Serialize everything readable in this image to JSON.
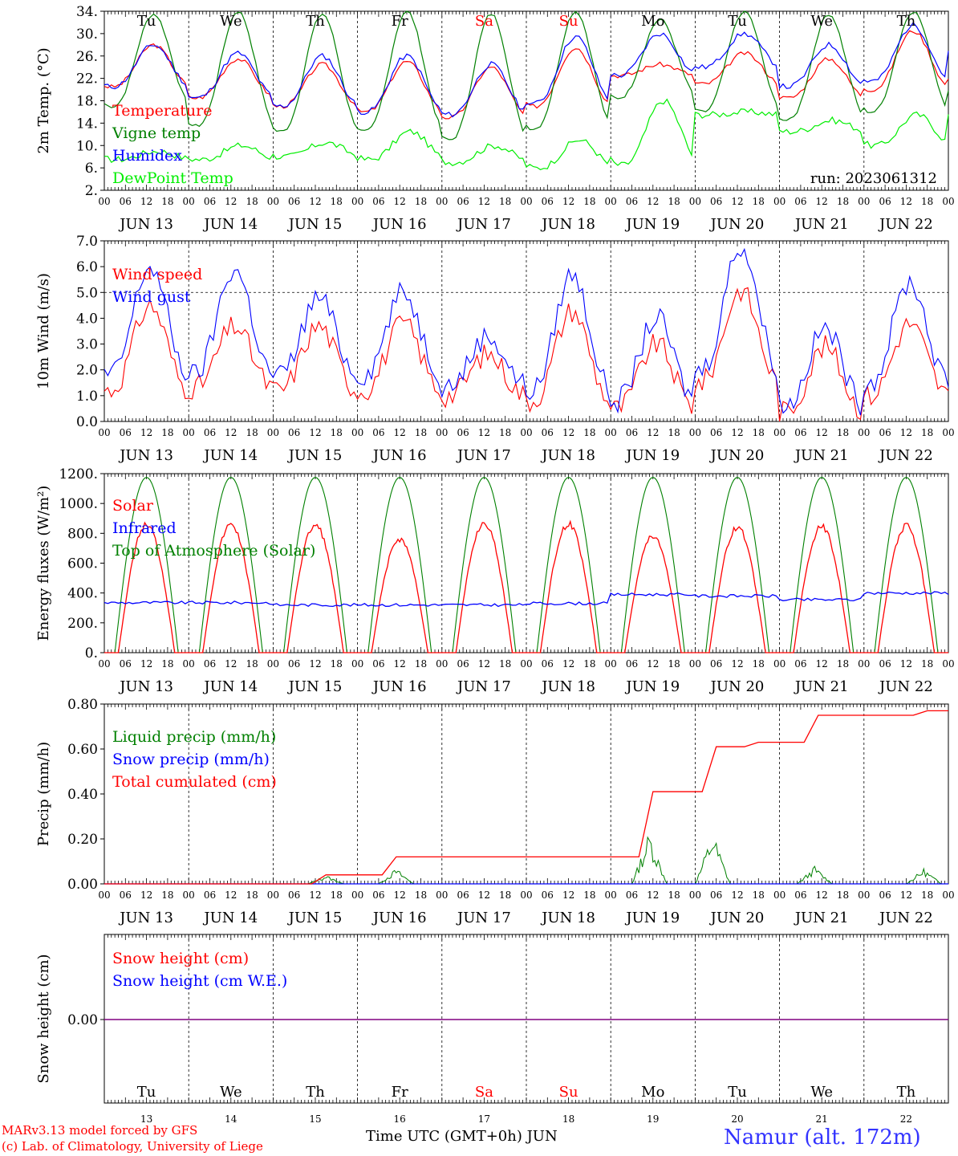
{
  "days": [
    "JUN 13",
    "JUN 14",
    "JUN 15",
    "JUN 16",
    "JUN 17",
    "JUN 18",
    "JUN 19",
    "JUN 20",
    "JUN 21",
    "JUN 22"
  ],
  "weekdays": [
    "Tu",
    "We",
    "Th",
    "Fr",
    "Sa",
    "Su",
    "Mo",
    "Tu",
    "We",
    "Th"
  ],
  "weekday_colors": [
    "#000000",
    "#000000",
    "#000000",
    "#000000",
    "#ff0000",
    "#ff0000",
    "#000000",
    "#000000",
    "#000000",
    "#000000"
  ],
  "day_numbers": [
    "13",
    "14",
    "15",
    "16",
    "17",
    "18",
    "19",
    "20",
    "21",
    "22"
  ],
  "hour_labels": [
    "00",
    "06",
    "12",
    "18"
  ],
  "final_hour_label": "00",
  "footer": {
    "model": "MARv3.13 model forced by GFS",
    "copyright": "(c) Lab. of Climatology, University of Liege",
    "xlabel": "Time UTC (GMT+0h) JUN",
    "station": "Namur (alt. 172m)"
  },
  "colors": {
    "red": "#ff0000",
    "blue": "#0000ff",
    "green": "#008000",
    "lightgreen": "#00ee00",
    "purple": "#800080"
  },
  "chart_data": [
    {
      "type": "line",
      "ylabel": "2m Temp. (°C)",
      "ylim": [
        2,
        34
      ],
      "yticks": [
        "34.",
        "30.",
        "26.",
        "22.",
        "18.",
        "14.",
        "10.",
        "6.",
        "2."
      ],
      "run_label": "run: 2023061312",
      "series": [
        {
          "name": "Temperature",
          "color": "#ff0000",
          "daily_min": [
            20.5,
            18.5,
            17,
            16,
            15,
            17,
            22.5,
            21,
            18.5,
            20
          ],
          "daily_max": [
            28,
            25.5,
            24.5,
            25,
            24,
            27.5,
            24.5,
            26.5,
            25.5,
            30.5
          ],
          "end_value": 22
        },
        {
          "name": "Vigne temp",
          "color": "#008000",
          "daily_min": [
            17,
            13.5,
            12.5,
            12.5,
            11,
            13,
            18.5,
            16,
            14.5,
            16
          ],
          "daily_max": [
            33.5,
            34,
            33.5,
            34,
            33.5,
            34,
            32.5,
            34,
            33.5,
            34
          ],
          "end_value": 20
        },
        {
          "name": "Humidex",
          "color": "#0000ff",
          "daily_min": [
            20.5,
            18.5,
            17,
            16,
            15.5,
            17.5,
            22.5,
            24,
            20.5,
            21.5
          ],
          "daily_max": [
            28,
            26.5,
            26,
            26,
            24.5,
            29.5,
            30,
            30,
            28,
            31.5
          ],
          "end_value": 26.5
        },
        {
          "name": "DewPoint Temp",
          "color": "#00ee00",
          "daily_min": [
            7.5,
            7.5,
            8,
            7.5,
            7,
            6,
            6.5,
            15.5,
            12.5,
            10
          ],
          "daily_max": [
            9,
            10,
            10.5,
            12.5,
            10,
            11,
            18,
            16,
            14.5,
            15.5
          ],
          "end_value": 15.5
        }
      ]
    },
    {
      "type": "line",
      "ylabel": "10m Wind (m/s)",
      "ylim": [
        0,
        7
      ],
      "yticks": [
        "7.0",
        "6.0",
        "5.0",
        "4.0",
        "3.0",
        "2.0",
        "1.0",
        "0.0"
      ],
      "reference_line": 5.0,
      "series": [
        {
          "name": "Wind speed",
          "color": "#ff0000",
          "daily_min": [
            1.2,
            1.3,
            1.2,
            1.2,
            1.0,
            0.8,
            0.5,
            1.5,
            0.4,
            1.0
          ],
          "daily_max": [
            4.5,
            3.7,
            3.7,
            3.8,
            2.6,
            4.3,
            3.0,
            5.1,
            2.9,
            3.8
          ],
          "end_value": 1.0
        },
        {
          "name": "Wind gust",
          "color": "#0000ff",
          "daily_min": [
            1.8,
            1.8,
            1.8,
            1.8,
            1.4,
            1.2,
            0.8,
            2.0,
            0.6,
            1.5
          ],
          "daily_max": [
            6.0,
            5.9,
            4.8,
            5.0,
            3.3,
            5.7,
            4.0,
            6.8,
            3.6,
            5.4
          ],
          "end_value": 1.5
        }
      ]
    },
    {
      "type": "line",
      "ylabel": "Energy fluxes (W/m²)",
      "ylim": [
        0,
        1200
      ],
      "yticks": [
        "1200.",
        "1000.",
        "800.",
        "600.",
        "400.",
        "200.",
        "0."
      ],
      "series": [
        {
          "name": "Solar",
          "color": "#ff0000",
          "daily_peak": [
            880,
            880,
            875,
            780,
            890,
            885,
            800,
            860,
            865,
            870
          ]
        },
        {
          "name": "Infrared",
          "color": "#0000ff",
          "daily_mean": [
            335,
            335,
            320,
            320,
            320,
            330,
            390,
            380,
            355,
            400
          ]
        },
        {
          "name": "Top of Atmosphere (Solar)",
          "color": "#008000",
          "daily_peak": [
            1175,
            1175,
            1175,
            1175,
            1175,
            1175,
            1175,
            1175,
            1175,
            1175
          ]
        }
      ]
    },
    {
      "type": "line",
      "ylabel": "Precip (mm/h)",
      "ylim": [
        0,
        0.8
      ],
      "yticks": [
        "0.80",
        "0.60",
        "0.40",
        "0.20",
        "0.00"
      ],
      "series": [
        {
          "name": "Liquid precip (mm/h)",
          "color": "#008000",
          "events": [
            {
              "day": 2,
              "hour": 15,
              "peak": 0.04
            },
            {
              "day": 3,
              "hour": 11,
              "peak": 0.07
            },
            {
              "day": 6,
              "hour": 11,
              "peak": 0.24
            },
            {
              "day": 7,
              "hour": 5,
              "peak": 0.24
            },
            {
              "day": 8,
              "hour": 10,
              "peak": 0.08
            },
            {
              "day": 9,
              "hour": 17,
              "peak": 0.07
            }
          ]
        },
        {
          "name": "Snow precip (mm/h)",
          "color": "#0000ff",
          "values_all": 0
        },
        {
          "name": "Total cumulated (cm)",
          "color": "#ff0000",
          "steps": [
            {
              "day": 2,
              "hour": 15,
              "value": 0.04
            },
            {
              "day": 3,
              "hour": 11,
              "value": 0.12
            },
            {
              "day": 6,
              "hour": 12,
              "value": 0.41
            },
            {
              "day": 7,
              "hour": 6,
              "value": 0.61
            },
            {
              "day": 7,
              "hour": 18,
              "value": 0.63
            },
            {
              "day": 8,
              "hour": 11,
              "value": 0.75
            },
            {
              "day": 9,
              "hour": 18,
              "value": 0.77
            }
          ]
        }
      ]
    },
    {
      "type": "line",
      "ylabel": "Snow height (cm)",
      "yticks": [
        "0.00"
      ],
      "series": [
        {
          "name": "Snow height (cm)",
          "color": "#ff0000",
          "value": 0
        },
        {
          "name": "Snow height (cm W.E.)",
          "color": "#0000ff",
          "value": 0
        }
      ]
    }
  ]
}
